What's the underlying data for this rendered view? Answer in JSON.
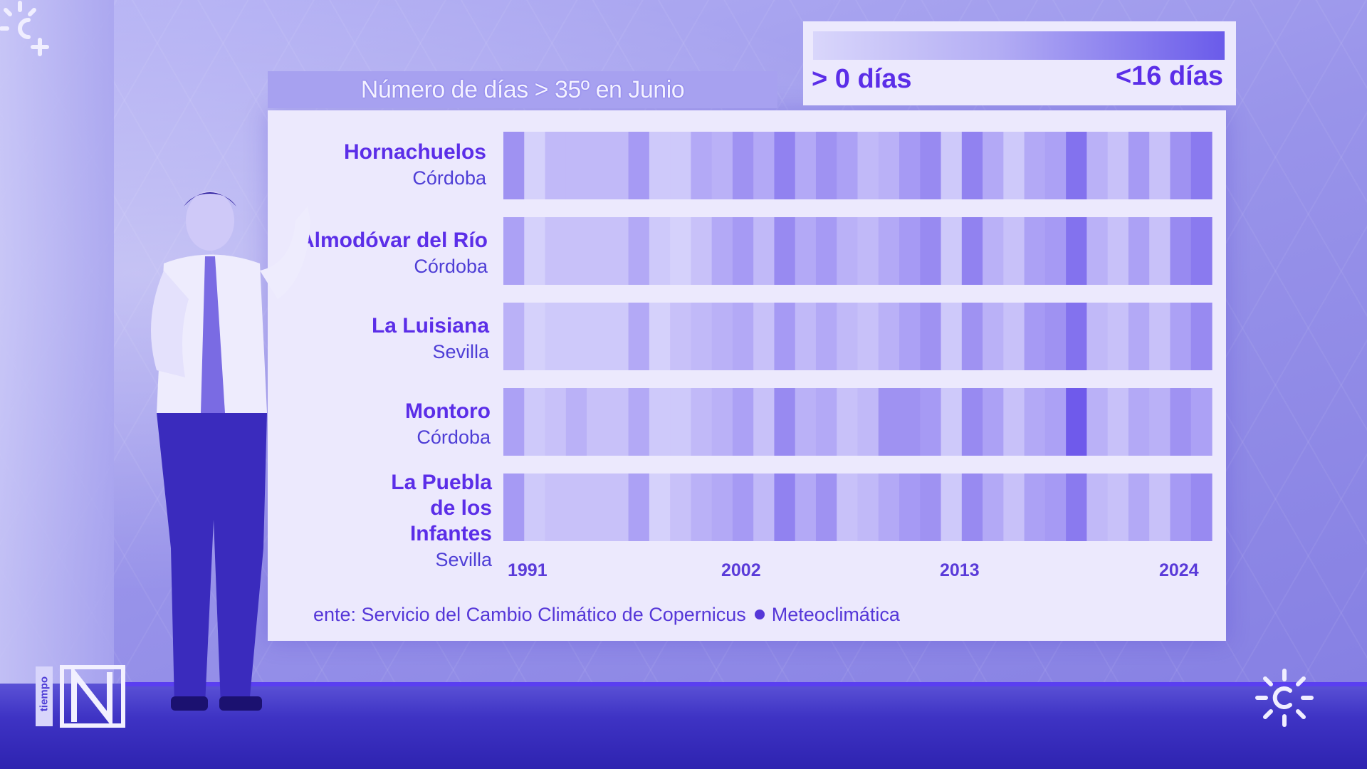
{
  "chart_data": {
    "type": "heatmap",
    "title": "Número de días > 35º en Junio",
    "legend": {
      "min_label": "> 0 días",
      "max_label": "<16 días"
    },
    "x_tick_labels": [
      "1991",
      "2002",
      "2013",
      "2024"
    ],
    "x_range": [
      1991,
      2024
    ],
    "value_range": [
      0,
      16
    ],
    "rows": [
      {
        "name": "Hornachuelos",
        "province": "Córdoba",
        "values": [
          9,
          1,
          4,
          4,
          4,
          4,
          8,
          2,
          2,
          6,
          5,
          9,
          6,
          11,
          6,
          9,
          7,
          4,
          5,
          8,
          10,
          2,
          11,
          6,
          2,
          6,
          7,
          13,
          5,
          3,
          8,
          3,
          9,
          12
        ]
      },
      {
        "name": "Almodóvar del Río",
        "province": "Córdoba",
        "values": [
          7,
          1,
          3,
          3,
          3,
          3,
          6,
          2,
          1,
          3,
          6,
          8,
          4,
          10,
          6,
          8,
          5,
          4,
          6,
          8,
          10,
          2,
          11,
          5,
          3,
          7,
          8,
          13,
          5,
          3,
          7,
          3,
          10,
          12
        ]
      },
      {
        "name": "La Luisiana",
        "province": "Sevilla",
        "values": [
          5,
          1,
          2,
          2,
          2,
          2,
          6,
          1,
          3,
          4,
          5,
          6,
          3,
          8,
          4,
          6,
          4,
          3,
          5,
          7,
          9,
          2,
          9,
          5,
          3,
          8,
          9,
          13,
          4,
          3,
          6,
          3,
          7,
          10
        ]
      },
      {
        "name": "Montoro",
        "province": "Córdoba",
        "values": [
          7,
          2,
          3,
          5,
          3,
          3,
          6,
          2,
          2,
          4,
          5,
          7,
          3,
          10,
          5,
          6,
          3,
          4,
          9,
          9,
          8,
          2,
          10,
          7,
          3,
          6,
          7,
          16,
          5,
          3,
          6,
          5,
          9,
          7
        ]
      },
      {
        "name": "La Puebla de los Infantes",
        "province": "Sevilla",
        "values": [
          8,
          2,
          3,
          3,
          3,
          3,
          7,
          1,
          3,
          5,
          6,
          8,
          4,
          11,
          6,
          9,
          3,
          4,
          6,
          8,
          9,
          2,
          10,
          6,
          3,
          7,
          8,
          12,
          4,
          3,
          6,
          3,
          8,
          10
        ]
      }
    ],
    "source": "ente: Servicio del Cambio Climático de Copernicus",
    "source_credit": "Meteoclimática"
  },
  "colors": {
    "low": "#dcd9fc",
    "high": "#6f5aeb",
    "label": "#5b2ee8"
  },
  "branding": {
    "badge_text": "tiempo"
  },
  "icons": [
    "canal-sur-sun-logo",
    "noticias-n-logo"
  ]
}
